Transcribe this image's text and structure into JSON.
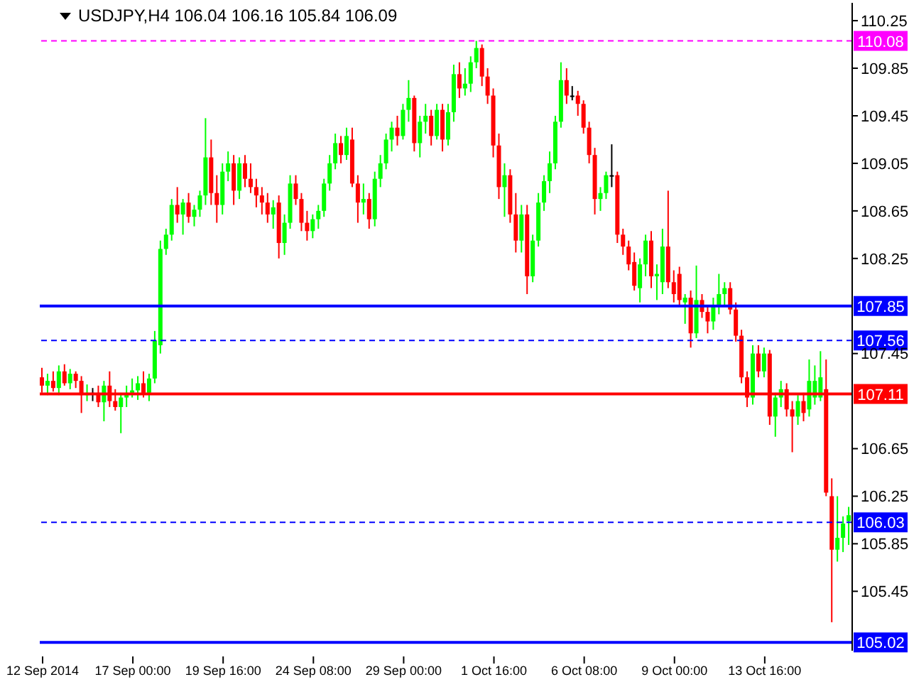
{
  "chart_data": {
    "type": "candlestick",
    "title": "USDJPY,H4  106.04 106.16 105.84 106.09",
    "categories": [
      "12 Sep 2014",
      null,
      null,
      null,
      null,
      null,
      null,
      null,
      null,
      null,
      null,
      null,
      null,
      null,
      null,
      null,
      "17 Sep 00:00",
      null,
      null,
      null,
      null,
      null,
      null,
      null,
      null,
      null,
      null,
      null,
      null,
      null,
      null,
      null,
      "19 Sep 16:00",
      null,
      null,
      null,
      null,
      null,
      null,
      null,
      null,
      null,
      null,
      null,
      null,
      null,
      null,
      null,
      "24 Sep 08:00",
      null,
      null,
      null,
      null,
      null,
      null,
      null,
      null,
      null,
      null,
      null,
      null,
      null,
      null,
      null,
      "29 Sep 00:00",
      null,
      null,
      null,
      null,
      null,
      null,
      null,
      null,
      null,
      null,
      null,
      null,
      null,
      null,
      null,
      "1 Oct 16:00",
      null,
      null,
      null,
      null,
      null,
      null,
      null,
      null,
      null,
      null,
      null,
      null,
      null,
      null,
      null,
      "6 Oct 08:00",
      null,
      null,
      null,
      null,
      null,
      null,
      null,
      null,
      null,
      null,
      null,
      null,
      null,
      null,
      null,
      "9 Oct 00:00",
      null,
      null,
      null,
      null,
      null,
      null,
      null,
      null,
      null,
      null,
      null,
      null,
      null,
      null,
      null,
      "13 Oct 16:00",
      null,
      null,
      null,
      null,
      null,
      null,
      null,
      null,
      null,
      null,
      null,
      null,
      null,
      null,
      null
    ],
    "ohlc": [
      [
        107.25,
        107.33,
        107.12,
        107.18
      ],
      [
        107.18,
        107.28,
        107.1,
        107.22
      ],
      [
        107.22,
        107.3,
        107.13,
        107.16
      ],
      [
        107.16,
        107.35,
        107.1,
        107.3
      ],
      [
        107.3,
        107.36,
        107.18,
        107.2
      ],
      [
        107.2,
        107.32,
        107.15,
        107.28
      ],
      [
        107.28,
        107.3,
        107.16,
        107.22
      ],
      [
        107.22,
        107.26,
        106.95,
        107.1
      ],
      [
        107.1,
        107.19,
        107.05,
        107.12
      ],
      [
        107.12,
        107.16,
        107.05,
        107.12
      ],
      [
        107.12,
        107.18,
        107.0,
        107.04
      ],
      [
        107.04,
        107.22,
        106.88,
        107.18
      ],
      [
        107.18,
        107.3,
        107.0,
        107.05
      ],
      [
        107.05,
        107.15,
        106.97,
        107.0
      ],
      [
        107.0,
        107.12,
        106.78,
        107.08
      ],
      [
        107.08,
        107.18,
        107.0,
        107.12
      ],
      [
        107.12,
        107.24,
        107.08,
        107.14
      ],
      [
        107.14,
        107.26,
        107.06,
        107.2
      ],
      [
        107.2,
        107.3,
        107.08,
        107.12
      ],
      [
        107.12,
        107.28,
        107.05,
        107.24
      ],
      [
        107.24,
        107.64,
        107.2,
        107.56
      ],
      [
        107.52,
        108.4,
        107.45,
        108.33
      ],
      [
        108.33,
        108.5,
        108.28,
        108.45
      ],
      [
        108.45,
        108.75,
        108.4,
        108.7
      ],
      [
        108.7,
        108.85,
        108.55,
        108.62
      ],
      [
        108.62,
        108.75,
        108.45,
        108.72
      ],
      [
        108.72,
        108.8,
        108.55,
        108.6
      ],
      [
        108.6,
        108.7,
        108.52,
        108.66
      ],
      [
        108.66,
        108.82,
        108.6,
        108.78
      ],
      [
        108.78,
        109.43,
        108.7,
        109.1
      ],
      [
        109.1,
        109.25,
        108.7,
        108.8
      ],
      [
        108.8,
        108.95,
        108.55,
        108.7
      ],
      [
        108.7,
        109.05,
        108.62,
        108.98
      ],
      [
        108.98,
        109.15,
        108.9,
        109.05
      ],
      [
        109.05,
        109.12,
        108.7,
        108.82
      ],
      [
        108.82,
        109.1,
        108.75,
        109.05
      ],
      [
        109.05,
        109.12,
        108.85,
        108.92
      ],
      [
        108.92,
        109.05,
        108.8,
        108.85
      ],
      [
        108.85,
        108.92,
        108.68,
        108.78
      ],
      [
        108.78,
        108.85,
        108.62,
        108.72
      ],
      [
        108.72,
        108.8,
        108.55,
        108.62
      ],
      [
        108.62,
        108.74,
        108.5,
        108.68
      ],
      [
        108.72,
        108.78,
        108.25,
        108.38
      ],
      [
        108.38,
        108.62,
        108.28,
        108.55
      ],
      [
        108.55,
        108.95,
        108.5,
        108.88
      ],
      [
        108.88,
        108.95,
        108.7,
        108.75
      ],
      [
        108.75,
        108.8,
        108.48,
        108.55
      ],
      [
        108.55,
        108.65,
        108.4,
        108.48
      ],
      [
        108.48,
        108.62,
        108.42,
        108.58
      ],
      [
        108.58,
        108.7,
        108.5,
        108.65
      ],
      [
        108.65,
        108.92,
        108.6,
        108.88
      ],
      [
        108.88,
        109.12,
        108.82,
        109.05
      ],
      [
        109.05,
        109.3,
        109.0,
        109.22
      ],
      [
        109.22,
        109.28,
        109.05,
        109.12
      ],
      [
        109.12,
        109.35,
        109.08,
        109.28
      ],
      [
        109.25,
        109.35,
        108.85,
        108.88
      ],
      [
        108.88,
        108.95,
        108.55,
        108.72
      ],
      [
        108.72,
        108.88,
        108.62,
        108.75
      ],
      [
        108.75,
        108.8,
        108.5,
        108.58
      ],
      [
        108.58,
        108.98,
        108.52,
        108.92
      ],
      [
        108.92,
        109.12,
        108.85,
        109.05
      ],
      [
        109.05,
        109.3,
        109.0,
        109.25
      ],
      [
        109.25,
        109.4,
        109.15,
        109.35
      ],
      [
        109.35,
        109.45,
        109.2,
        109.28
      ],
      [
        109.28,
        109.55,
        109.25,
        109.5
      ],
      [
        109.5,
        109.75,
        109.4,
        109.6
      ],
      [
        109.6,
        109.62,
        109.15,
        109.22
      ],
      [
        109.22,
        109.45,
        109.1,
        109.4
      ],
      [
        109.4,
        109.55,
        109.3,
        109.45
      ],
      [
        109.45,
        109.5,
        109.2,
        109.28
      ],
      [
        109.28,
        109.55,
        109.25,
        109.5
      ],
      [
        109.5,
        109.55,
        109.15,
        109.25
      ],
      [
        109.25,
        109.55,
        109.2,
        109.48
      ],
      [
        109.48,
        109.88,
        109.4,
        109.8
      ],
      [
        109.8,
        109.9,
        109.6,
        109.68
      ],
      [
        109.68,
        109.85,
        109.62,
        109.72
      ],
      [
        109.72,
        109.95,
        109.65,
        109.9
      ],
      [
        109.9,
        110.08,
        109.85,
        110.02
      ],
      [
        110.02,
        110.05,
        109.7,
        109.78
      ],
      [
        109.78,
        109.85,
        109.55,
        109.62
      ],
      [
        109.62,
        109.68,
        109.1,
        109.2
      ],
      [
        109.2,
        109.3,
        108.75,
        108.85
      ],
      [
        108.85,
        109.05,
        108.6,
        108.95
      ],
      [
        108.95,
        109.0,
        108.55,
        108.62
      ],
      [
        108.62,
        108.8,
        108.3,
        108.4
      ],
      [
        108.4,
        108.7,
        108.3,
        108.62
      ],
      [
        108.62,
        108.7,
        107.95,
        108.1
      ],
      [
        108.1,
        108.45,
        108.05,
        108.4
      ],
      [
        108.4,
        108.8,
        108.35,
        108.72
      ],
      [
        108.72,
        108.95,
        108.65,
        108.9
      ],
      [
        108.9,
        109.15,
        108.8,
        109.05
      ],
      [
        109.05,
        109.45,
        109.0,
        109.4
      ],
      [
        109.4,
        109.9,
        109.35,
        109.75
      ],
      [
        109.75,
        109.85,
        109.55,
        109.62
      ],
      [
        109.62,
        109.7,
        109.58,
        109.62
      ],
      [
        109.62,
        109.66,
        109.45,
        109.55
      ],
      [
        109.55,
        109.58,
        109.3,
        109.35
      ],
      [
        109.35,
        109.4,
        109.05,
        109.12
      ],
      [
        109.12,
        109.18,
        108.62,
        108.75
      ],
      [
        108.75,
        108.85,
        108.65,
        108.8
      ],
      [
        108.8,
        108.98,
        108.75,
        108.95
      ],
      [
        108.95,
        109.21,
        108.85,
        108.95
      ],
      [
        108.95,
        108.98,
        108.38,
        108.45
      ],
      [
        108.45,
        108.5,
        108.28,
        108.35
      ],
      [
        108.35,
        108.4,
        108.15,
        108.2
      ],
      [
        108.22,
        108.3,
        107.98,
        108.02
      ],
      [
        108.0,
        108.25,
        107.88,
        108.2
      ],
      [
        108.2,
        108.45,
        108.1,
        108.4
      ],
      [
        108.4,
        108.48,
        108.0,
        108.1
      ],
      [
        108.1,
        108.2,
        107.9,
        108.12
      ],
      [
        108.05,
        108.5,
        107.95,
        108.35
      ],
      [
        108.35,
        108.82,
        108.0,
        108.05
      ],
      [
        108.05,
        108.15,
        107.88,
        107.95
      ],
      [
        108.12,
        108.18,
        107.85,
        107.9
      ],
      [
        107.88,
        107.95,
        107.7,
        107.92
      ],
      [
        107.92,
        107.98,
        107.5,
        107.62
      ],
      [
        107.62,
        108.19,
        107.58,
        107.9
      ],
      [
        107.9,
        107.95,
        107.75,
        107.8
      ],
      [
        107.8,
        107.85,
        107.62,
        107.72
      ],
      [
        107.72,
        107.92,
        107.65,
        107.85
      ],
      [
        107.85,
        108.12,
        107.78,
        107.95
      ],
      [
        107.95,
        108.05,
        107.85,
        108.0
      ],
      [
        108.0,
        108.05,
        107.78,
        107.82
      ],
      [
        107.82,
        107.88,
        107.55,
        107.6
      ],
      [
        107.6,
        107.65,
        107.2,
        107.25
      ],
      [
        107.25,
        107.3,
        107.0,
        107.08
      ],
      [
        107.08,
        107.52,
        107.02,
        107.45
      ],
      [
        107.45,
        107.52,
        107.25,
        107.3
      ],
      [
        107.3,
        107.5,
        107.25,
        107.45
      ],
      [
        107.45,
        107.48,
        106.85,
        106.92
      ],
      [
        106.92,
        107.12,
        106.75,
        107.08
      ],
      [
        107.08,
        107.22,
        107.0,
        107.15
      ],
      [
        107.15,
        107.2,
        106.92,
        106.98
      ],
      [
        106.98,
        107.05,
        106.62,
        106.92
      ],
      [
        106.92,
        107.1,
        106.85,
        107.05
      ],
      [
        107.05,
        107.12,
        106.88,
        106.95
      ],
      [
        106.98,
        107.4,
        106.92,
        107.22
      ],
      [
        107.08,
        107.35,
        107.02,
        107.22
      ],
      [
        107.08,
        107.47,
        107.05,
        107.25
      ],
      [
        107.15,
        107.4,
        106.25,
        106.28
      ],
      [
        106.25,
        106.4,
        105.19,
        105.8
      ],
      [
        105.8,
        106.25,
        105.7,
        105.9
      ],
      [
        105.9,
        106.08,
        105.78,
        106.02
      ],
      [
        106.04,
        106.16,
        105.84,
        106.09
      ]
    ],
    "colors": [
      "#ff0000",
      "#00ff00",
      "#ff0000",
      "#00ff00",
      "#ff0000",
      "#00ff00",
      "#ff0000",
      "#ff0000",
      "#00ff00",
      "#000000",
      "#ff0000",
      "#00ff00",
      "#ff0000",
      "#ff0000",
      "#00ff00",
      "#00ff00",
      "#00ff00",
      "#00ff00",
      "#ff0000",
      "#00ff00",
      "#00ff00",
      "#00ff00",
      "#00ff00",
      "#00ff00",
      "#ff0000",
      "#00ff00",
      "#ff0000",
      "#00ff00",
      "#00ff00",
      "#00ff00",
      "#ff0000",
      "#ff0000",
      "#00ff00",
      "#00ff00",
      "#ff0000",
      "#00ff00",
      "#ff0000",
      "#ff0000",
      "#ff0000",
      "#ff0000",
      "#ff0000",
      "#00ff00",
      "#ff0000",
      "#00ff00",
      "#00ff00",
      "#ff0000",
      "#ff0000",
      "#ff0000",
      "#00ff00",
      "#00ff00",
      "#00ff00",
      "#00ff00",
      "#00ff00",
      "#ff0000",
      "#00ff00",
      "#ff0000",
      "#ff0000",
      "#00ff00",
      "#ff0000",
      "#00ff00",
      "#00ff00",
      "#00ff00",
      "#00ff00",
      "#ff0000",
      "#00ff00",
      "#00ff00",
      "#ff0000",
      "#00ff00",
      "#00ff00",
      "#ff0000",
      "#00ff00",
      "#ff0000",
      "#00ff00",
      "#00ff00",
      "#ff0000",
      "#00ff00",
      "#00ff00",
      "#00ff00",
      "#ff0000",
      "#ff0000",
      "#ff0000",
      "#ff0000",
      "#00ff00",
      "#ff0000",
      "#ff0000",
      "#00ff00",
      "#ff0000",
      "#00ff00",
      "#00ff00",
      "#00ff00",
      "#00ff00",
      "#00ff00",
      "#00ff00",
      "#ff0000",
      "#000000",
      "#ff0000",
      "#ff0000",
      "#ff0000",
      "#ff0000",
      "#00ff00",
      "#00ff00",
      "#000000",
      "#ff0000",
      "#ff0000",
      "#ff0000",
      "#ff0000",
      "#00ff00",
      "#00ff00",
      "#ff0000",
      "#00ff00",
      "#00ff00",
      "#ff0000",
      "#ff0000",
      "#ff0000",
      "#00ff00",
      "#ff0000",
      "#00ff00",
      "#ff0000",
      "#ff0000",
      "#00ff00",
      "#00ff00",
      "#00ff00",
      "#ff0000",
      "#ff0000",
      "#ff0000",
      "#ff0000",
      "#00ff00",
      "#ff0000",
      "#00ff00",
      "#ff0000",
      "#00ff00",
      "#00ff00",
      "#ff0000",
      "#ff0000",
      "#00ff00",
      "#ff0000",
      "#00ff00",
      "#00ff00",
      "#00ff00",
      "#ff0000",
      "#ff0000",
      "#00ff00",
      "#00ff00",
      "#00ff00"
    ],
    "ylim": [
      104.95,
      110.4
    ],
    "yticks": [
      110.25,
      109.85,
      109.45,
      109.05,
      108.65,
      108.25,
      107.45,
      106.65,
      106.25,
      105.85,
      105.45
    ],
    "ref_lines": [
      {
        "axis": "y",
        "value": 110.08,
        "label": "110.08",
        "color": "#ff00ff",
        "line_style": "dashed"
      },
      {
        "axis": "y",
        "value": 107.85,
        "label": "107.85",
        "color": "#0000ff",
        "line_style": "solid"
      },
      {
        "axis": "y",
        "value": 107.56,
        "label": "107.56",
        "color": "#0000ff",
        "line_style": "dashed"
      },
      {
        "axis": "y",
        "value": 107.11,
        "label": "107.11",
        "color": "#ff0000",
        "line_style": "solid"
      },
      {
        "axis": "y",
        "value": 106.03,
        "label": "106.03",
        "color": "#0000ff",
        "line_style": "dashed"
      },
      {
        "axis": "y",
        "value": 105.02,
        "label": "105.02",
        "color": "#0000ff",
        "line_style": "solid"
      }
    ]
  }
}
